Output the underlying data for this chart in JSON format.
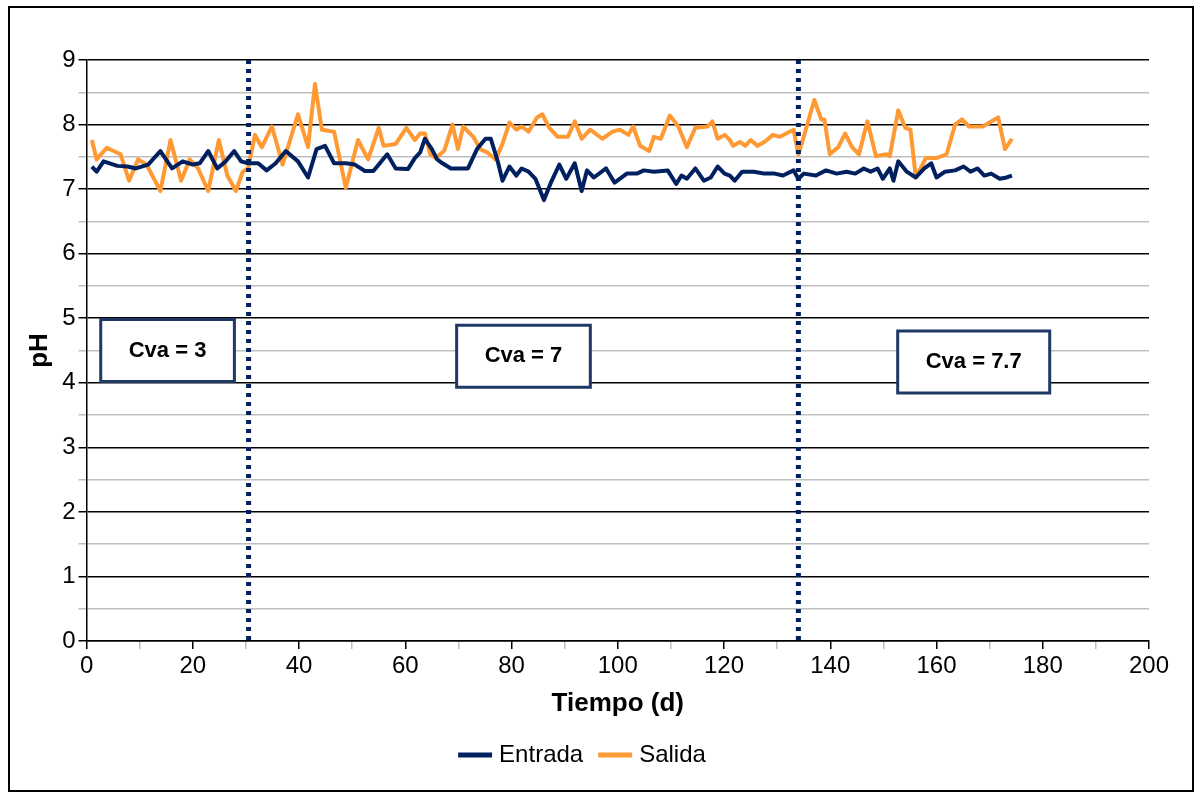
{
  "chart_data": {
    "type": "line",
    "xlabel": "Tiempo (d)",
    "ylabel": "pH",
    "xlim": [
      0,
      200
    ],
    "xticks": [
      0,
      {
        "value": 10,
        "label": null
      },
      20,
      {
        "value": 30,
        "label": null
      },
      40,
      {
        "value": 50,
        "label": null
      },
      60,
      {
        "value": 70,
        "label": null
      },
      80,
      {
        "value": 90,
        "label": null
      },
      100,
      {
        "value": 110,
        "label": null
      },
      120,
      {
        "value": 130,
        "label": null
      },
      140,
      {
        "value": 150,
        "label": null
      },
      160,
      {
        "value": 170,
        "label": null
      },
      180,
      {
        "value": 190,
        "label": null
      },
      200
    ],
    "ylim": [
      0,
      9
    ],
    "yticks": [
      0,
      {
        "value": 0.5,
        "label": null
      },
      1,
      {
        "value": 1.5,
        "label": null
      },
      2,
      {
        "value": 2.5,
        "label": null
      },
      3,
      {
        "value": 3.5,
        "label": null
      },
      4,
      {
        "value": 4.5,
        "label": null
      },
      5,
      {
        "value": 5.5,
        "label": null
      },
      6,
      {
        "value": 6.5,
        "label": null
      },
      7,
      {
        "value": 7.5,
        "label": null
      },
      8,
      {
        "value": 8.5,
        "label": null
      },
      9
    ],
    "grid": "y",
    "legend": "bottom",
    "line_style": "solid",
    "marker": "none",
    "series": [
      {
        "name": "Entrada",
        "color": "#002060",
        "x": [
          1,
          1.9,
          3.2,
          5.8,
          7.7,
          9.3,
          11.6,
          13.9,
          16.1,
          18.1,
          20,
          21.3,
          22.9,
          24.6,
          26.2,
          27.8,
          29.1,
          30.4,
          32.3,
          33.9,
          35.6,
          37.5,
          39.8,
          41.7,
          43.3,
          44.9,
          46.6,
          48.8,
          50.5,
          52.4,
          54,
          56.6,
          58.2,
          60.5,
          61.8,
          62.8,
          63.7,
          65,
          66,
          67,
          68.6,
          70.2,
          71.8,
          73.5,
          75.1,
          76.1,
          77.4,
          78.3,
          79.6,
          80.9,
          81.9,
          83.2,
          84.5,
          86.1,
          87.4,
          89,
          90.3,
          91.9,
          93.2,
          94.2,
          95.5,
          97.8,
          99.4,
          101.7,
          103.6,
          104.9,
          106.8,
          109.4,
          111,
          112,
          113,
          114.6,
          116.2,
          117.5,
          118.8,
          120.1,
          121.1,
          122,
          123.4,
          125.6,
          127.6,
          129.5,
          131.1,
          133.1,
          134,
          135,
          137.3,
          139.2,
          141.2,
          143.1,
          144.7,
          146.3,
          147.6,
          148.9,
          149.9,
          151.2,
          151.9,
          152.8,
          154.4,
          156.1,
          157.7,
          159,
          160,
          161.6,
          163.5,
          165.1,
          166.4,
          167.7,
          169,
          170.3,
          171.9,
          173.2,
          174.2
        ],
        "values": [
          7.35,
          7.27,
          7.43,
          7.36,
          7.35,
          7.32,
          7.38,
          7.59,
          7.32,
          7.43,
          7.38,
          7.4,
          7.59,
          7.32,
          7.43,
          7.59,
          7.43,
          7.4,
          7.4,
          7.29,
          7.4,
          7.59,
          7.43,
          7.18,
          7.62,
          7.67,
          7.4,
          7.4,
          7.38,
          7.28,
          7.28,
          7.54,
          7.32,
          7.31,
          7.48,
          7.57,
          7.78,
          7.62,
          7.46,
          7.4,
          7.32,
          7.32,
          7.32,
          7.62,
          7.78,
          7.78,
          7.43,
          7.13,
          7.35,
          7.21,
          7.32,
          7.27,
          7.16,
          6.83,
          7.1,
          7.38,
          7.16,
          7.4,
          6.97,
          7.29,
          7.18,
          7.32,
          7.1,
          7.24,
          7.24,
          7.29,
          7.27,
          7.29,
          7.08,
          7.21,
          7.16,
          7.32,
          7.13,
          7.18,
          7.35,
          7.24,
          7.21,
          7.13,
          7.27,
          7.27,
          7.24,
          7.24,
          7.21,
          7.29,
          7.16,
          7.24,
          7.21,
          7.29,
          7.24,
          7.27,
          7.24,
          7.32,
          7.27,
          7.32,
          7.16,
          7.32,
          7.13,
          7.43,
          7.27,
          7.18,
          7.32,
          7.4,
          7.18,
          7.27,
          7.29,
          7.35,
          7.27,
          7.32,
          7.21,
          7.24,
          7.16,
          7.18,
          7.21
        ]
      },
      {
        "name": "Salida",
        "color": "#ff9933",
        "x": [
          1,
          1.9,
          3.8,
          6.4,
          8,
          9.7,
          11.3,
          13.9,
          15.8,
          17.8,
          19.4,
          21,
          22.9,
          24.9,
          26.5,
          28.1,
          29.4,
          30.4,
          31.7,
          33,
          34.9,
          36.9,
          39.8,
          41.7,
          43,
          44.3,
          46.6,
          48.8,
          51.1,
          53,
          55,
          55.9,
          58.2,
          60.2,
          61.8,
          62.8,
          63.7,
          64.7,
          65.7,
          67.3,
          68.9,
          69.9,
          70.9,
          72.8,
          74.1,
          75.4,
          77,
          78.3,
          79.6,
          80.9,
          81.9,
          83.2,
          84.8,
          85.8,
          87.1,
          88.7,
          90.6,
          91.9,
          93.2,
          94.8,
          97.1,
          99,
          100.4,
          102,
          102.9,
          104.2,
          105.9,
          106.8,
          108.1,
          109.8,
          111.4,
          113,
          114.6,
          116.9,
          117.8,
          118.8,
          120.1,
          121.1,
          121.7,
          123,
          124,
          125,
          126.3,
          127.6,
          129.2,
          130.5,
          133.1,
          134,
          135,
          137,
          138.3,
          138.9,
          139.9,
          141.5,
          142.8,
          144.1,
          145.4,
          147,
          148.6,
          150.6,
          151.2,
          152.8,
          154.1,
          155.1,
          156.1,
          158,
          160,
          161.9,
          163.5,
          164.8,
          166.1,
          168.7,
          171.6,
          172.9,
          174.2
        ],
        "values": [
          7.76,
          7.46,
          7.64,
          7.54,
          7.13,
          7.46,
          7.38,
          6.97,
          7.76,
          7.13,
          7.46,
          7.32,
          6.97,
          7.76,
          7.21,
          6.97,
          7.27,
          7.32,
          7.84,
          7.65,
          7.97,
          7.38,
          8.16,
          7.65,
          8.63,
          7.92,
          7.89,
          7.02,
          7.76,
          7.46,
          7.95,
          7.67,
          7.7,
          7.95,
          7.76,
          7.86,
          7.86,
          7.54,
          7.48,
          7.59,
          8.0,
          7.62,
          7.97,
          7.81,
          7.62,
          7.57,
          7.46,
          7.7,
          8.03,
          7.92,
          7.97,
          7.89,
          8.11,
          8.16,
          7.95,
          7.81,
          7.81,
          8.05,
          7.78,
          7.92,
          7.78,
          7.89,
          7.92,
          7.84,
          7.97,
          7.67,
          7.59,
          7.81,
          7.78,
          8.14,
          7.97,
          7.65,
          7.95,
          7.97,
          8.05,
          7.78,
          7.84,
          7.76,
          7.67,
          7.73,
          7.67,
          7.76,
          7.67,
          7.73,
          7.84,
          7.81,
          7.92,
          7.54,
          7.81,
          8.38,
          8.08,
          8.08,
          7.54,
          7.65,
          7.86,
          7.65,
          7.54,
          8.05,
          7.51,
          7.54,
          7.51,
          8.22,
          7.95,
          7.92,
          7.18,
          7.48,
          7.48,
          7.54,
          8.0,
          8.08,
          7.97,
          7.97,
          8.11,
          7.62,
          7.78
        ]
      }
    ],
    "ref_lines": [
      {
        "axis": "x",
        "value": 30.5,
        "color": "#002060",
        "line_style": "dotted"
      },
      {
        "axis": "x",
        "value": 134,
        "color": "#002060",
        "line_style": "dotted"
      }
    ],
    "annotations": [
      "Cva = 3",
      "Cva = 7",
      "Cva = 7.7"
    ]
  }
}
